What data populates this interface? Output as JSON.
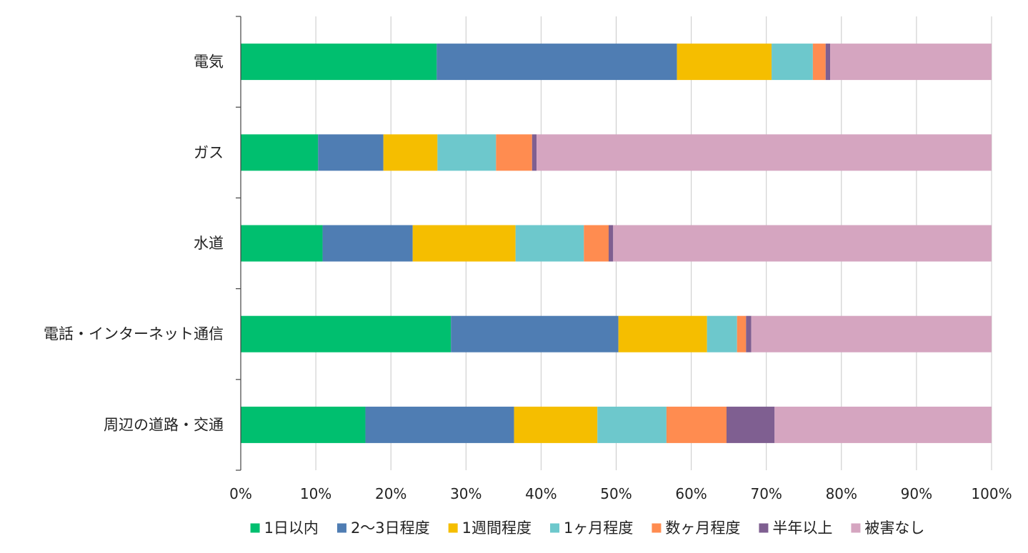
{
  "chart_data": {
    "type": "bar",
    "orientation": "horizontal",
    "stacked": "percent",
    "categories": [
      "電気",
      "ガス",
      "水道",
      "電話・インターネット通信",
      "周辺の道路・交通"
    ],
    "series": [
      {
        "name": "1日以内",
        "color": "#00BF6F",
        "values": [
          26.1,
          10.3,
          10.9,
          28.0,
          16.6
        ]
      },
      {
        "name": "2〜3日程度",
        "color": "#4F7DB3",
        "values": [
          32.0,
          8.7,
          12.0,
          22.3,
          19.8
        ]
      },
      {
        "name": "1週間程度",
        "color": "#F5BE00",
        "values": [
          12.6,
          7.2,
          13.7,
          11.8,
          11.1
        ]
      },
      {
        "name": "1ヶ月程度",
        "color": "#6DC8CC",
        "values": [
          5.5,
          7.8,
          9.1,
          4.0,
          9.2
        ]
      },
      {
        "name": "数ヶ月程度",
        "color": "#FF8C50",
        "values": [
          1.7,
          4.8,
          3.3,
          1.2,
          8.0
        ]
      },
      {
        "name": "半年以上",
        "color": "#7F5F91",
        "values": [
          0.6,
          0.6,
          0.6,
          0.7,
          6.4
        ]
      },
      {
        "name": "被害なし",
        "color": "#D5A5C0",
        "values": [
          21.5,
          60.6,
          50.4,
          32.0,
          28.9
        ]
      }
    ],
    "xlim": [
      0,
      100
    ],
    "x_ticks": [
      "0%",
      "10%",
      "20%",
      "30%",
      "40%",
      "50%",
      "60%",
      "70%",
      "80%",
      "90%",
      "100%"
    ],
    "grid": true,
    "legend_position": "bottom"
  }
}
